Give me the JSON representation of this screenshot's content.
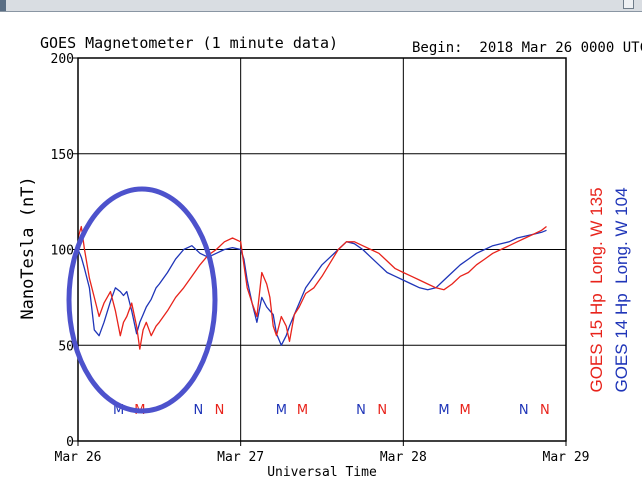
{
  "window": {
    "title": ""
  },
  "chart_data": {
    "type": "line",
    "title": "GOES Magnetometer (1 minute data)",
    "begin_label": "Begin:  2018 Mar 26 0000 UTC",
    "xlabel": "Universal Time",
    "ylabel": "NanoTesla (nT)",
    "ylim": [
      0,
      200
    ],
    "yticks": [
      "0",
      "50",
      "100",
      "150",
      "200"
    ],
    "xlim": [
      0,
      3
    ],
    "xticks": [
      "Mar 26",
      "Mar 27",
      "Mar 28",
      "Mar 29"
    ],
    "grid": true,
    "legend": [
      {
        "label": "GOES 15 Hp  Long. W 135",
        "color": "#e8231b"
      },
      {
        "label": "GOES 14 Hp  Long. W 104",
        "color": "#1f35b8"
      }
    ],
    "markers": [
      {
        "text": "M",
        "x": 0.25,
        "color": "#1f35b8"
      },
      {
        "text": "M",
        "x": 0.38,
        "color": "#e8231b"
      },
      {
        "text": "N",
        "x": 0.74,
        "color": "#1f35b8"
      },
      {
        "text": "N",
        "x": 0.87,
        "color": "#e8231b"
      },
      {
        "text": "M",
        "x": 1.25,
        "color": "#1f35b8"
      },
      {
        "text": "M",
        "x": 1.38,
        "color": "#e8231b"
      },
      {
        "text": "N",
        "x": 1.74,
        "color": "#1f35b8"
      },
      {
        "text": "N",
        "x": 1.87,
        "color": "#e8231b"
      },
      {
        "text": "M",
        "x": 2.25,
        "color": "#1f35b8"
      },
      {
        "text": "M",
        "x": 2.38,
        "color": "#e8231b"
      },
      {
        "text": "N",
        "x": 2.74,
        "color": "#1f35b8"
      },
      {
        "text": "N",
        "x": 2.87,
        "color": "#e8231b"
      }
    ],
    "series": [
      {
        "name": "GOES 15 Hp",
        "color": "#e8231b",
        "x": [
          0,
          0.02,
          0.04,
          0.07,
          0.1,
          0.13,
          0.16,
          0.2,
          0.23,
          0.26,
          0.28,
          0.3,
          0.33,
          0.36,
          0.38,
          0.4,
          0.42,
          0.45,
          0.48,
          0.5,
          0.55,
          0.6,
          0.65,
          0.7,
          0.75,
          0.8,
          0.85,
          0.9,
          0.95,
          1.0,
          1.02,
          1.04,
          1.07,
          1.1,
          1.13,
          1.16,
          1.18,
          1.2,
          1.22,
          1.25,
          1.28,
          1.3,
          1.33,
          1.36,
          1.4,
          1.45,
          1.5,
          1.55,
          1.6,
          1.65,
          1.7,
          1.75,
          1.8,
          1.85,
          1.9,
          1.95,
          2.0,
          2.05,
          2.1,
          2.15,
          2.2,
          2.25,
          2.3,
          2.35,
          2.4,
          2.45,
          2.5,
          2.55,
          2.6,
          2.65,
          2.7,
          2.75,
          2.8,
          2.85,
          2.88
        ],
        "y": [
          106,
          112,
          100,
          85,
          75,
          65,
          72,
          78,
          68,
          55,
          62,
          65,
          72,
          60,
          48,
          58,
          62,
          55,
          60,
          62,
          68,
          75,
          80,
          86,
          92,
          97,
          100,
          104,
          106,
          104,
          92,
          80,
          72,
          65,
          88,
          82,
          75,
          60,
          55,
          65,
          60,
          52,
          66,
          70,
          77,
          80,
          86,
          93,
          100,
          104,
          104,
          102,
          100,
          98,
          94,
          90,
          88,
          86,
          84,
          82,
          80,
          79,
          82,
          86,
          88,
          92,
          95,
          98,
          100,
          102,
          104,
          106,
          108,
          110,
          112
        ]
      },
      {
        "name": "GOES 14 Hp",
        "color": "#1f35b8",
        "x": [
          0,
          0.02,
          0.04,
          0.07,
          0.1,
          0.13,
          0.16,
          0.2,
          0.23,
          0.26,
          0.28,
          0.3,
          0.33,
          0.36,
          0.38,
          0.4,
          0.42,
          0.45,
          0.48,
          0.5,
          0.55,
          0.6,
          0.65,
          0.7,
          0.75,
          0.8,
          0.85,
          0.9,
          0.95,
          1.0,
          1.02,
          1.04,
          1.07,
          1.1,
          1.13,
          1.16,
          1.18,
          1.2,
          1.22,
          1.25,
          1.28,
          1.3,
          1.33,
          1.36,
          1.4,
          1.45,
          1.5,
          1.55,
          1.6,
          1.65,
          1.7,
          1.75,
          1.8,
          1.85,
          1.9,
          1.95,
          2.0,
          2.05,
          2.1,
          2.15,
          2.2,
          2.25,
          2.3,
          2.35,
          2.4,
          2.45,
          2.5,
          2.55,
          2.6,
          2.65,
          2.7,
          2.75,
          2.8,
          2.85,
          2.88
        ],
        "y": [
          100,
          96,
          90,
          80,
          58,
          55,
          62,
          73,
          80,
          78,
          76,
          78,
          68,
          56,
          62,
          66,
          70,
          74,
          80,
          82,
          88,
          95,
          100,
          102,
          98,
          96,
          98,
          100,
          101,
          100,
          95,
          84,
          72,
          62,
          75,
          70,
          68,
          66,
          56,
          50,
          55,
          60,
          66,
          72,
          80,
          86,
          92,
          96,
          100,
          104,
          103,
          100,
          96,
          92,
          88,
          86,
          84,
          82,
          80,
          79,
          80,
          84,
          88,
          92,
          95,
          98,
          100,
          102,
          103,
          104,
          106,
          107,
          108,
          109,
          110
        ]
      }
    ]
  }
}
